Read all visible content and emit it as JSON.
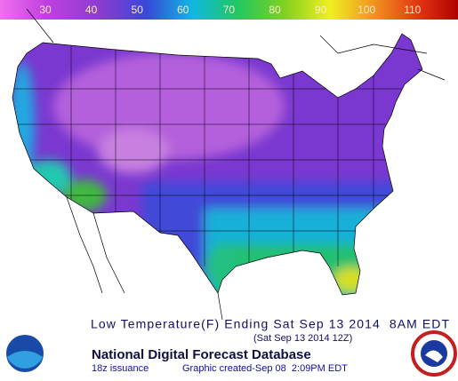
{
  "legend": {
    "labels": [
      "30",
      "40",
      "50",
      "60",
      "70",
      "80",
      "90",
      "100",
      "110"
    ]
  },
  "caption": {
    "title": "Low Temperature(F) Ending Sat Sep 13 2014  8AM EDT",
    "valid": "(Sat Sep 13 2014 12Z)"
  },
  "footer": {
    "database": "National Digital Forecast Database",
    "issuance": "18z issuance",
    "created": "Graphic created-Sep 08  2:09PM EDT"
  }
}
